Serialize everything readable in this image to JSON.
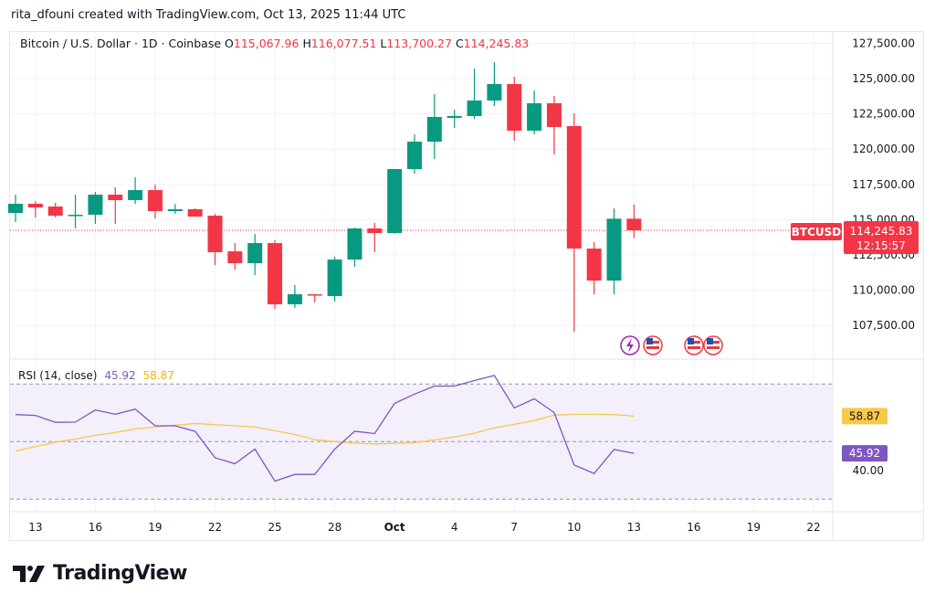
{
  "credit": "rita_dfouni created with TradingView.com, Oct 13, 2025 11:44 UTC",
  "legend": {
    "symbol": "Bitcoin / U.S. Dollar · 1D · Coinbase",
    "o_label": "O",
    "o": "115,067.96",
    "h_label": "H",
    "h": "116,077.51",
    "l_label": "L",
    "l": "113,700.27",
    "c_label": "C",
    "c": "114,245.83"
  },
  "last_price": {
    "ticker": "BTCUSD",
    "price": "114,245.83",
    "countdown": "12:15:57"
  },
  "rsi_legend": {
    "name": "RSI (14, close)",
    "rsi": "45.92",
    "ma": "58.87"
  },
  "events": [
    "lightning-event-icon",
    "us-flag-icon",
    "us-flag-icon",
    "us-flag-icon"
  ],
  "logo_text": "TradingView",
  "colors": {
    "up": "#089981",
    "down": "#f23645",
    "rsi": "#7e57c2",
    "rsi_ma": "#f7c948",
    "rsi_band": "#f3effb"
  },
  "chart_data": [
    {
      "type": "candlestick",
      "dates": [
        "Sep 12",
        "Sep 13",
        "Sep 14",
        "Sep 15",
        "Sep 16",
        "Sep 17",
        "Sep 18",
        "Sep 19",
        "Sep 20",
        "Sep 21",
        "Sep 22",
        "Sep 23",
        "Sep 24",
        "Sep 25",
        "Sep 26",
        "Sep 27",
        "Sep 28",
        "Sep 29",
        "Sep 30",
        "Oct 1",
        "Oct 2",
        "Oct 3",
        "Oct 4",
        "Oct 5",
        "Oct 6",
        "Oct 7",
        "Oct 8",
        "Oct 9",
        "Oct 10",
        "Oct 11",
        "Oct 12",
        "Oct 13"
      ],
      "ohlc": [
        [
          115479,
          116774,
          114831,
          116127
        ],
        [
          116127,
          116321,
          115155,
          115867
        ],
        [
          115932,
          116191,
          115155,
          115284
        ],
        [
          115284,
          116774,
          114378,
          115349
        ],
        [
          115349,
          116968,
          114701,
          116774
        ],
        [
          116774,
          117292,
          114701,
          116386
        ],
        [
          116386,
          118005,
          116127,
          117098
        ],
        [
          117098,
          117487,
          115090,
          115608
        ],
        [
          115608,
          116127,
          115414,
          115738
        ],
        [
          115738,
          115803,
          115220,
          115220
        ],
        [
          115284,
          115414,
          111787,
          112694
        ],
        [
          112758,
          113341,
          111463,
          111916
        ],
        [
          111916,
          113989,
          111075,
          113341
        ],
        [
          113341,
          113536,
          108678,
          109002
        ],
        [
          109002,
          110362,
          108743,
          109714
        ],
        [
          109714,
          109714,
          109131,
          109650
        ],
        [
          109585,
          112370,
          109196,
          112176
        ],
        [
          112176,
          114442,
          111658,
          114378
        ],
        [
          114378,
          114766,
          112694,
          114054
        ],
        [
          114054,
          118588,
          113989,
          118588
        ],
        [
          118588,
          121049,
          118264,
          120531
        ],
        [
          120531,
          123899,
          119300,
          122280
        ],
        [
          122215,
          122798,
          121502,
          122344
        ],
        [
          122344,
          125712,
          122150,
          123446
        ],
        [
          123446,
          126166,
          123057,
          124611
        ],
        [
          124611,
          125130,
          120596,
          121308
        ],
        [
          121308,
          124158,
          121049,
          123251
        ],
        [
          123251,
          123769,
          119624,
          121567
        ],
        [
          121632,
          122539,
          107059,
          112953
        ],
        [
          112953,
          113406,
          109714,
          110686
        ],
        [
          110686,
          115803,
          109714,
          115068
        ],
        [
          115067.96,
          116077.51,
          113700.27,
          114245.83
        ]
      ],
      "y_ticks": [
        "107,500.00",
        "110,000.00",
        "112,500.00",
        "115,000.00",
        "117,500.00",
        "120,000.00",
        "122,500.00",
        "125,000.00",
        "127,500.00"
      ],
      "y_tick_values": [
        107500,
        110000,
        112500,
        115000,
        117500,
        120000,
        122500,
        125000,
        127500
      ],
      "ylim": [
        106000,
        128800
      ],
      "last_close": 114245.83
    },
    {
      "type": "line",
      "series": [
        {
          "name": "RSI (14, close)",
          "values": [
            59.4,
            59.1,
            56.7,
            56.8,
            61.0,
            59.5,
            61.3,
            55.5,
            55.5,
            53.6,
            44.4,
            42.3,
            47.4,
            36.3,
            38.6,
            38.6,
            47.4,
            53.6,
            52.8,
            63.3,
            66.5,
            69.3,
            69.3,
            71.2,
            73.0,
            61.7,
            64.9,
            60.1,
            41.9,
            38.9,
            47.3,
            45.92
          ]
        },
        {
          "values": [
            46.7,
            48.3,
            49.8,
            50.9,
            52.2,
            53.2,
            54.4,
            55.1,
            55.7,
            56.3,
            55.9,
            55.5,
            55.1,
            53.8,
            52.5,
            50.7,
            50.0,
            49.5,
            49.2,
            49.4,
            49.6,
            50.6,
            51.6,
            52.9,
            54.8,
            56.0,
            57.3,
            59.2,
            59.5,
            59.5,
            59.4,
            58.87
          ]
        }
      ],
      "bands": [
        70,
        50,
        30
      ],
      "y_ticks": [
        "40.00"
      ],
      "y_tick_values": [
        40
      ],
      "ylim": [
        27,
        75
      ]
    }
  ],
  "x_ticks": [
    {
      "label": "13",
      "day": 1
    },
    {
      "label": "16",
      "day": 4
    },
    {
      "label": "19",
      "day": 7
    },
    {
      "label": "22",
      "day": 10
    },
    {
      "label": "25",
      "day": 13
    },
    {
      "label": "28",
      "day": 16
    },
    {
      "label": "Oct",
      "day": 19
    },
    {
      "label": "4",
      "day": 22
    },
    {
      "label": "7",
      "day": 25
    },
    {
      "label": "10",
      "day": 28
    },
    {
      "label": "13",
      "day": 31
    },
    {
      "label": "16",
      "day": 34
    },
    {
      "label": "19",
      "day": 37
    },
    {
      "label": "22",
      "day": 40
    }
  ]
}
